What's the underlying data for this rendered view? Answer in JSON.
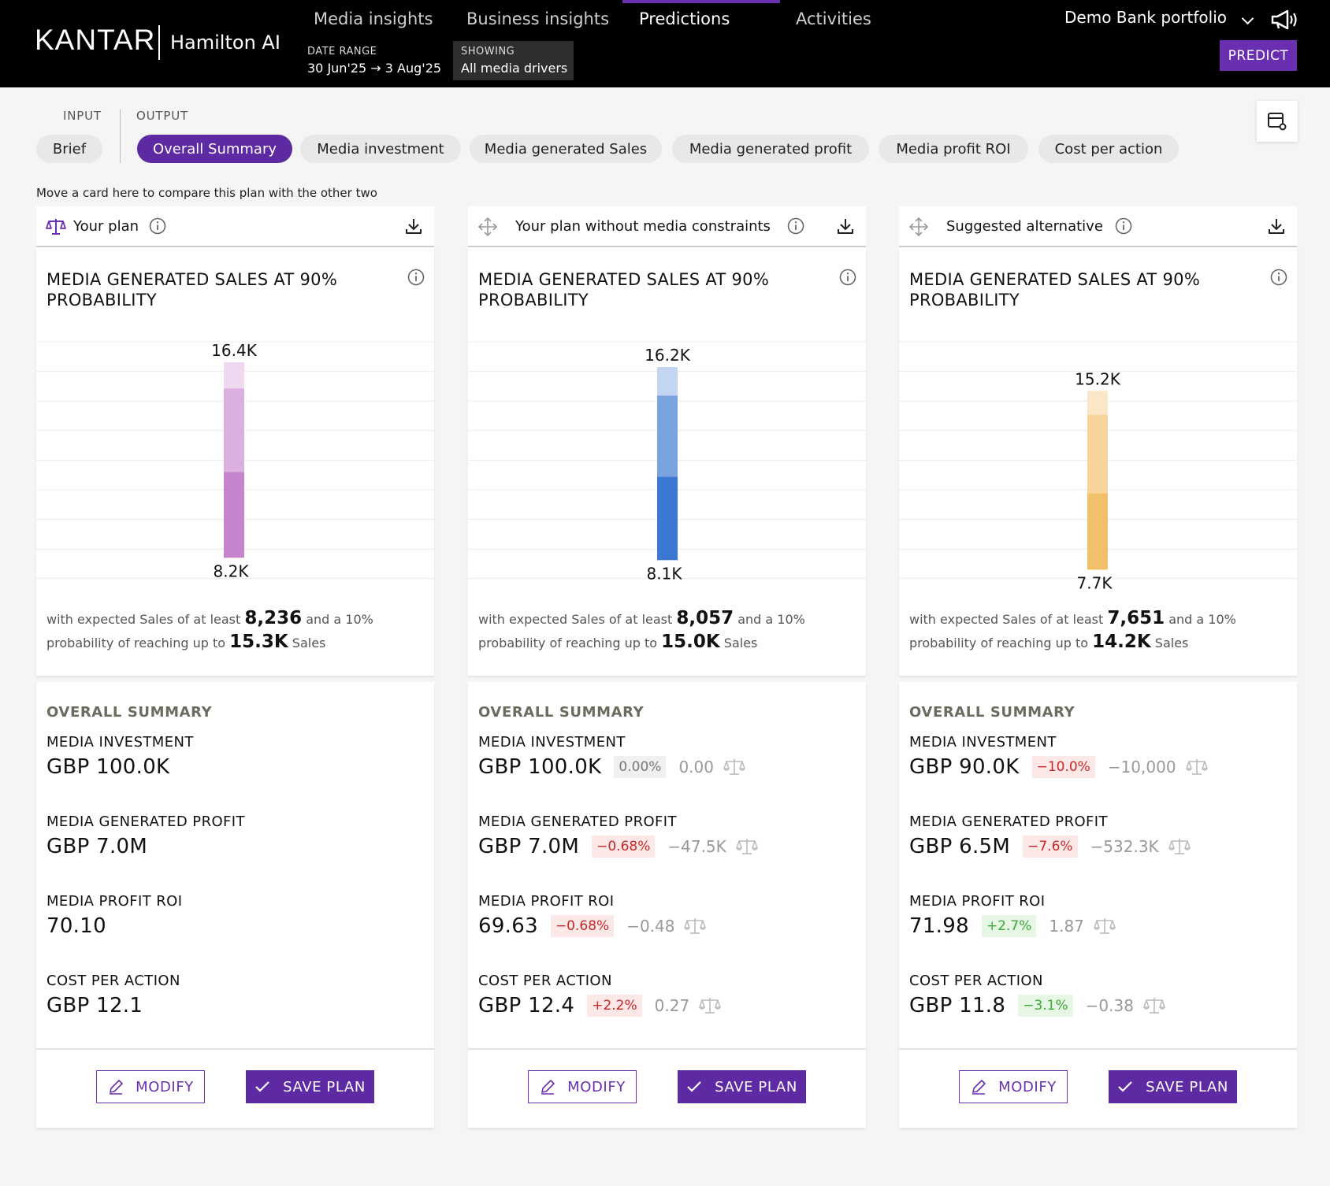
{
  "header": {
    "brand": "KANTAR",
    "product": "Hamilton AI",
    "nav": [
      "Media insights",
      "Business insights",
      "Predictions",
      "Activities"
    ],
    "active_nav": "Predictions",
    "date_range_label": "DATE RANGE",
    "date_range_value": "30 Jun'25 → 3 Aug'25",
    "showing_label": "SHOWING",
    "showing_value": "All media drivers",
    "portfolio": "Demo Bank portfolio",
    "predict_label": "PREDICT"
  },
  "tabs": {
    "input_label": "INPUT",
    "output_label": "OUTPUT",
    "input_tab": "Brief",
    "output_tabs": [
      "Overall Summary",
      "Media investment",
      "Media generated Sales",
      "Media generated profit",
      "Media profit ROI",
      "Cost per action"
    ],
    "active": "Overall Summary"
  },
  "hint": "Move a card here to compare this plan with the other two",
  "colors": {
    "accent": "#5e2aa3",
    "plan1": "#c485cc",
    "plan2": "#3b78d4",
    "plan3": "#f3c06a"
  },
  "cards": [
    {
      "title": "Your plan",
      "chart_title": "MEDIA GENERATED SALES AT 90% PROBABILITY",
      "chart_data": {
        "type": "bar",
        "high_label": "16.4K",
        "low_label": "8.2K",
        "high": 16.4,
        "low": 8.2,
        "mid": 11.8,
        "upper": 15.3,
        "color": "plan1"
      },
      "desc": {
        "prefix": "with expected Sales of at least ",
        "min": "8,236",
        "middle": " and a 10% probability of reaching up to ",
        "max": "15.3K",
        "suffix": " Sales"
      },
      "summary_title": "OVERALL SUMMARY",
      "metrics": [
        {
          "label": "MEDIA INVESTMENT",
          "value": "GBP 100.0K"
        },
        {
          "label": "MEDIA GENERATED PROFIT",
          "value": "GBP 7.0M"
        },
        {
          "label": "MEDIA PROFIT ROI",
          "value": "70.10"
        },
        {
          "label": "COST PER ACTION",
          "value": "GBP 12.1"
        }
      ],
      "modify": "MODIFY",
      "save": "SAVE PLAN"
    },
    {
      "title": "Your plan without media constraints",
      "chart_title": "MEDIA GENERATED SALES AT 90% PROBABILITY",
      "chart_data": {
        "type": "bar",
        "high_label": "16.2K",
        "low_label": "8.1K",
        "high": 16.2,
        "low": 8.1,
        "mid": 11.6,
        "upper": 15.0,
        "color": "plan2"
      },
      "desc": {
        "prefix": "with expected Sales of at least ",
        "min": "8,057",
        "middle": " and a 10% probability of reaching up to ",
        "max": "15.0K",
        "suffix": " Sales"
      },
      "summary_title": "OVERALL SUMMARY",
      "metrics": [
        {
          "label": "MEDIA INVESTMENT",
          "value": "GBP 100.0K",
          "badge": "0.00%",
          "tone": "neutral",
          "diff": "0.00"
        },
        {
          "label": "MEDIA GENERATED PROFIT",
          "value": "GBP 7.0M",
          "badge": "−0.68%",
          "tone": "neg",
          "diff": "−47.5K"
        },
        {
          "label": "MEDIA PROFIT ROI",
          "value": "69.63",
          "badge": "−0.68%",
          "tone": "neg",
          "diff": "−0.48"
        },
        {
          "label": "COST PER ACTION",
          "value": "GBP 12.4",
          "badge": "+2.2%",
          "tone": "neg",
          "diff": "0.27"
        }
      ],
      "modify": "MODIFY",
      "save": "SAVE PLAN"
    },
    {
      "title": "Suggested alternative",
      "chart_title": "MEDIA GENERATED SALES AT 90% PROBABILITY",
      "chart_data": {
        "type": "bar",
        "high_label": "15.2K",
        "low_label": "7.7K",
        "high": 15.2,
        "low": 7.7,
        "mid": 10.9,
        "upper": 14.2,
        "color": "plan3"
      },
      "desc": {
        "prefix": "with expected Sales of at least ",
        "min": "7,651",
        "middle": " and a 10% probability of reaching up to ",
        "max": "14.2K",
        "suffix": " Sales"
      },
      "summary_title": "OVERALL SUMMARY",
      "metrics": [
        {
          "label": "MEDIA INVESTMENT",
          "value": "GBP 90.0K",
          "badge": "−10.0%",
          "tone": "neg",
          "diff": "−10,000"
        },
        {
          "label": "MEDIA GENERATED PROFIT",
          "value": "GBP 6.5M",
          "badge": "−7.6%",
          "tone": "neg",
          "diff": "−532.3K"
        },
        {
          "label": "MEDIA PROFIT ROI",
          "value": "71.98",
          "badge": "+2.7%",
          "tone": "pos",
          "diff": "1.87"
        },
        {
          "label": "COST PER ACTION",
          "value": "GBP 11.8",
          "badge": "−3.1%",
          "tone": "pos",
          "diff": "−0.38"
        }
      ],
      "modify": "MODIFY",
      "save": "SAVE PLAN"
    }
  ]
}
